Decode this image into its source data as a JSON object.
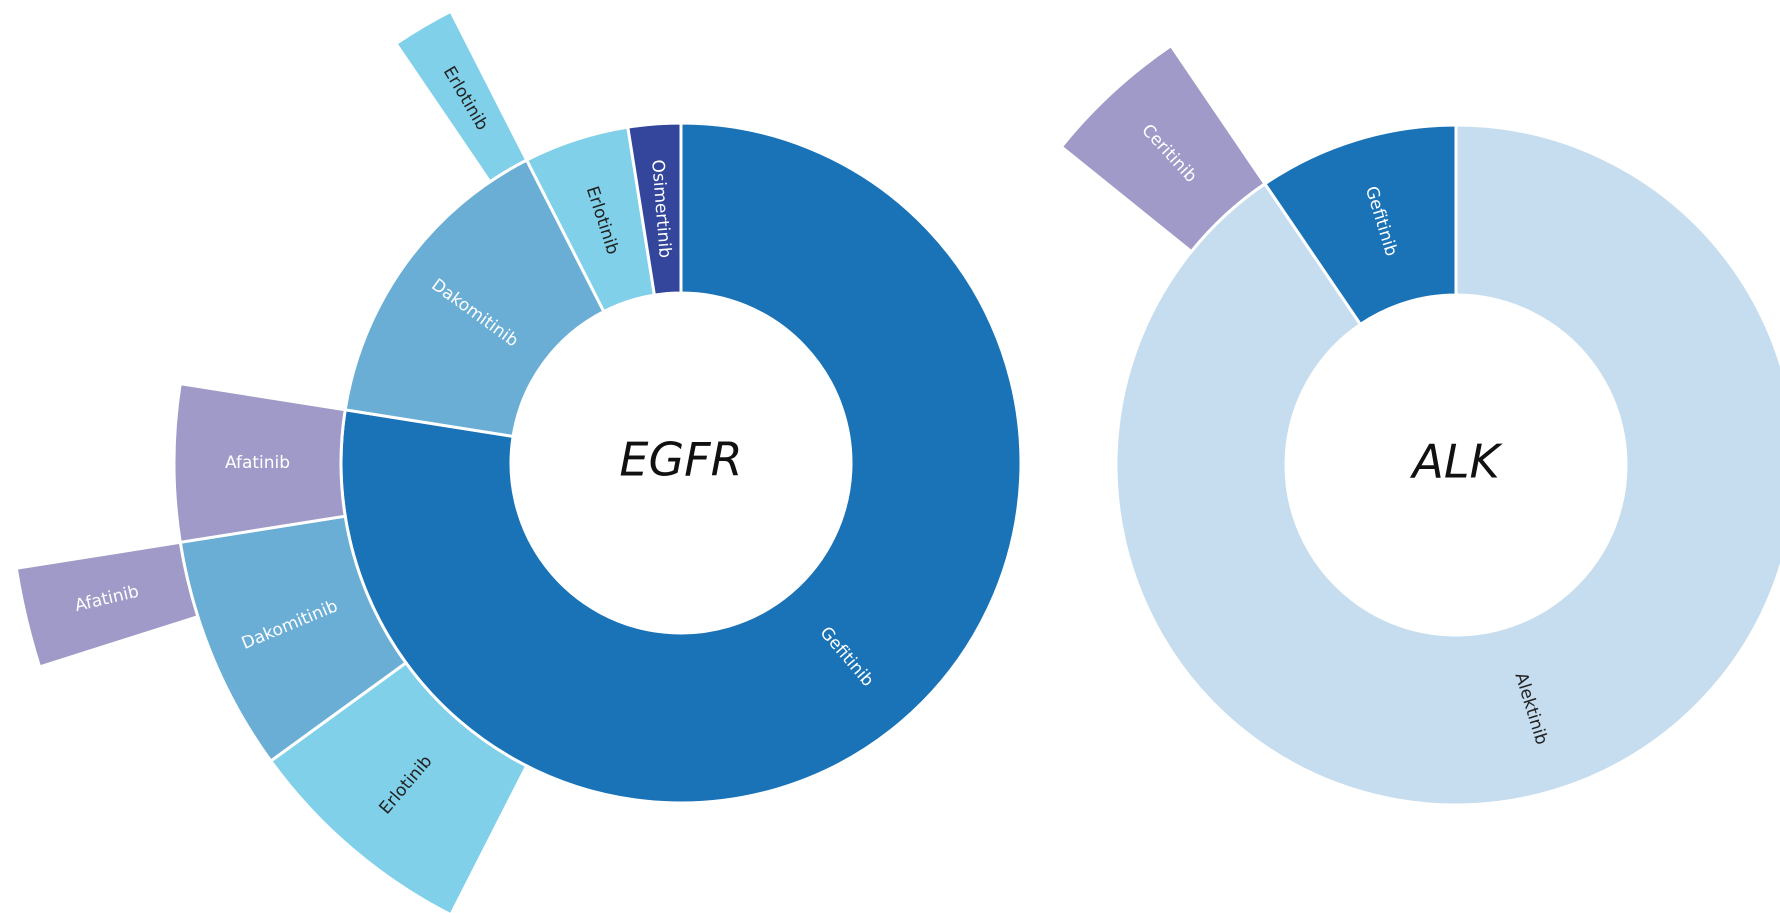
{
  "chart_data": [
    {
      "type": "sunburst",
      "title": "EGFR",
      "children": [
        {
          "name": "Gefitinib",
          "value": 77.5,
          "color": "#1a73b7",
          "children": [
            {
              "name": "Erlotinib",
              "value": 7.5,
              "color": "#7fd0e8"
            },
            {
              "name": "Dakomitinib",
              "value": 7.5,
              "color": "#6aaed6",
              "children": [
                {
                  "name": "Afatinib",
                  "value": 2.4,
                  "color": "#a09ac8"
                }
              ]
            },
            {
              "name": "Afatinib",
              "value": 5,
              "color": "#a09ac8"
            }
          ]
        },
        {
          "name": "Dakomitinib",
          "value": 15,
          "color": "#6aaed6",
          "children": [
            {
              "name": "Erlotinib",
              "value": 2,
              "color": "#7fd0e8"
            }
          ]
        },
        {
          "name": "Erlotinib",
          "value": 5,
          "color": "#7fd0e8"
        },
        {
          "name": "Osimertinib",
          "value": 2.5,
          "color": "#34469c"
        }
      ]
    },
    {
      "type": "sunburst",
      "title": "ALK",
      "children": [
        {
          "name": "Alektinib",
          "value": 90.5,
          "color": "#c6ddef",
          "children": [
            {
              "name": "Ceritinib",
              "value": 4.7,
              "color": "#a09ac8"
            }
          ]
        },
        {
          "name": "Gefitinib",
          "value": 9.5,
          "color": "#1a73b7"
        }
      ]
    }
  ]
}
